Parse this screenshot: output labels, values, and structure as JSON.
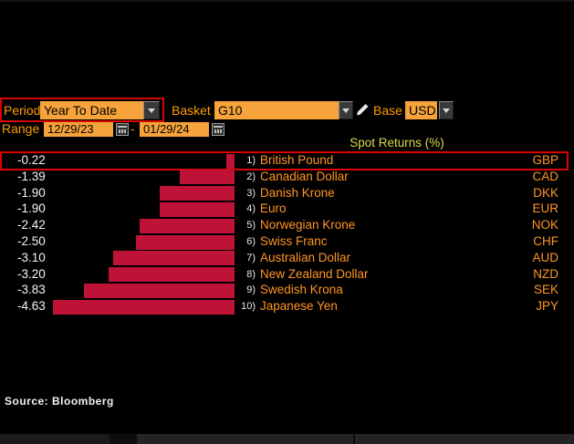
{
  "controls": {
    "period": {
      "label": "Period",
      "value": "Year To Date"
    },
    "basket": {
      "label": "Basket",
      "value": "G10"
    },
    "base": {
      "label": "Base",
      "value": "USD"
    },
    "range": {
      "label": "Range",
      "start": "12/29/23",
      "separator": "-",
      "end": "01/29/24"
    }
  },
  "chart_data": {
    "type": "bar",
    "orientation": "horizontal",
    "title": "Spot Returns (%)",
    "xlim": [
      -5,
      0
    ],
    "baseline": 0,
    "bar_color": "#be1336",
    "categories": [
      "British Pound",
      "Canadian Dollar",
      "Danish Krone",
      "Euro",
      "Norwegian Krone",
      "Swiss Franc",
      "Australian Dollar",
      "New Zealand Dollar",
      "Swedish Krona",
      "Japanese Yen"
    ],
    "values": [
      -0.22,
      -1.39,
      -1.9,
      -1.9,
      -2.42,
      -2.5,
      -3.1,
      -3.2,
      -3.83,
      -4.63
    ],
    "rows": [
      {
        "rank": "1)",
        "name": "British Pound",
        "code": "GBP",
        "value": -0.22,
        "highlighted": true
      },
      {
        "rank": "2)",
        "name": "Canadian Dollar",
        "code": "CAD",
        "value": -1.39,
        "highlighted": false
      },
      {
        "rank": "3)",
        "name": "Danish Krone",
        "code": "DKK",
        "value": -1.9,
        "highlighted": false
      },
      {
        "rank": "4)",
        "name": "Euro",
        "code": "EUR",
        "value": -1.9,
        "highlighted": false
      },
      {
        "rank": "5)",
        "name": "Norwegian Krone",
        "code": "NOK",
        "value": -2.42,
        "highlighted": false
      },
      {
        "rank": "6)",
        "name": "Swiss Franc",
        "code": "CHF",
        "value": -2.5,
        "highlighted": false
      },
      {
        "rank": "7)",
        "name": "Australian Dollar",
        "code": "AUD",
        "value": -3.1,
        "highlighted": false
      },
      {
        "rank": "8)",
        "name": "New Zealand Dollar",
        "code": "NZD",
        "value": -3.2,
        "highlighted": false
      },
      {
        "rank": "9)",
        "name": "Swedish Krona",
        "code": "SEK",
        "value": -3.83,
        "highlighted": false
      },
      {
        "rank": "10)",
        "name": "Japanese Yen",
        "code": "JPY",
        "value": -4.63,
        "highlighted": false
      }
    ]
  },
  "source": "Source: Bloomberg",
  "colors": {
    "background": "#000000",
    "label_orange": "#ff9c06",
    "field_orange": "#f5a33a",
    "row_text_orange": "#ff9526",
    "bar_red": "#be1336",
    "annotation_red": "#d70400",
    "title_yellow": "#dedc4e",
    "value_white": "#f4f4f4"
  },
  "icons": {
    "dropdown": "chevron-down-icon",
    "calendar": "calendar-icon",
    "edit": "pencil-icon"
  }
}
